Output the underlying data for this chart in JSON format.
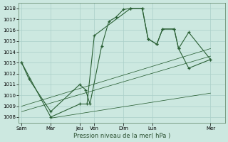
{
  "background_color": "#cce8e0",
  "grid_color": "#aacfc8",
  "line_color": "#2a6035",
  "title": "Pression niveau de la mer( hPa )",
  "xlabels": [
    "Sam",
    "Mar",
    "Jeu",
    "Ven",
    "Dim",
    "Lun",
    "Mer"
  ],
  "xtick_positions": [
    0,
    2,
    4,
    5,
    7,
    9,
    13
  ],
  "ylim": [
    1007.5,
    1018.5
  ],
  "yticks": [
    1008,
    1009,
    1010,
    1011,
    1012,
    1013,
    1014,
    1015,
    1016,
    1017,
    1018
  ],
  "xlim": [
    -0.2,
    14.0
  ],
  "series1_x": [
    0.0,
    0.5,
    2.0,
    4.0,
    4.4,
    4.7,
    5.5,
    6.0,
    6.5,
    7.0,
    7.5,
    8.3,
    8.7,
    9.3,
    9.7,
    10.5,
    10.8,
    11.5,
    13.0
  ],
  "series1_y": [
    1013.0,
    1011.5,
    1008.5,
    1011.0,
    1010.5,
    1009.2,
    1014.5,
    1016.8,
    1017.2,
    1017.9,
    1018.0,
    1018.0,
    1015.2,
    1014.7,
    1016.1,
    1016.1,
    1014.3,
    1015.8,
    1013.3
  ],
  "series2_x": [
    0.0,
    2.0,
    4.0,
    4.5,
    5.0,
    7.5,
    8.3,
    8.7,
    9.3,
    9.7,
    10.5,
    10.8,
    11.5,
    13.0
  ],
  "series2_y": [
    1013.0,
    1008.0,
    1009.2,
    1009.2,
    1015.5,
    1018.0,
    1018.0,
    1015.2,
    1014.7,
    1016.1,
    1016.1,
    1014.3,
    1012.5,
    1013.3
  ],
  "trend1_x": [
    0.0,
    13.0
  ],
  "trend1_y": [
    1009.0,
    1014.3
  ],
  "trend2_x": [
    0.0,
    13.0
  ],
  "trend2_y": [
    1008.5,
    1013.6
  ],
  "trend3_x": [
    2.0,
    13.0
  ],
  "trend3_y": [
    1007.9,
    1010.2
  ]
}
